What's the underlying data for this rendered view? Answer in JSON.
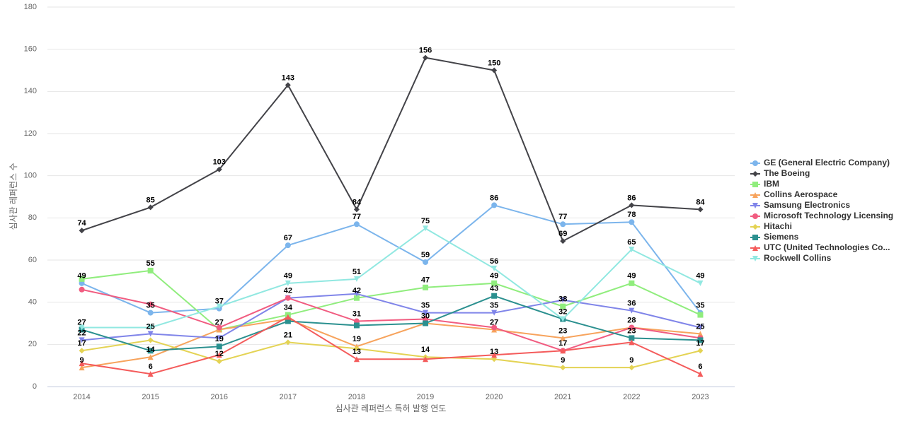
{
  "chart_data": {
    "type": "line",
    "x_label": "심사관 레퍼런스 특허 발행 연도",
    "y_label": "심사관 레퍼런스 수",
    "categories": [
      "2014",
      "2015",
      "2016",
      "2017",
      "2018",
      "2019",
      "2020",
      "2021",
      "2022",
      "2023"
    ],
    "ylim": [
      0,
      180
    ],
    "yticks": [
      0,
      20,
      40,
      60,
      80,
      100,
      120,
      140,
      160,
      180
    ],
    "grid": true,
    "legend": "right",
    "series": [
      {
        "name": "GE (General Electric Company)",
        "color": "#7cb5ec",
        "marker": "circle",
        "values": [
          49,
          35,
          37,
          67,
          77,
          59,
          86,
          77,
          78,
          35
        ]
      },
      {
        "name": "The Boeing",
        "color": "#434348",
        "marker": "diamond",
        "values": [
          74,
          85,
          103,
          143,
          84,
          156,
          150,
          69,
          86,
          84
        ]
      },
      {
        "name": "IBM",
        "color": "#90ed7d",
        "marker": "square",
        "values": [
          51,
          55,
          27,
          34,
          42,
          47,
          49,
          38,
          49,
          34
        ]
      },
      {
        "name": "Collins Aerospace",
        "color": "#f7a35c",
        "marker": "triangle",
        "values": [
          9,
          14,
          27,
          32,
          19,
          30,
          27,
          23,
          28,
          25
        ]
      },
      {
        "name": "Samsung Electronics",
        "color": "#8085e9",
        "marker": "triangle-down",
        "values": [
          22,
          25,
          23,
          42,
          44,
          35,
          35,
          41,
          36,
          28
        ]
      },
      {
        "name": "Microsoft Technology Licensing",
        "color": "#f15c80",
        "marker": "circle",
        "values": [
          46,
          39,
          28,
          42,
          31,
          32,
          28,
          17,
          28,
          23
        ]
      },
      {
        "name": "Hitachi",
        "color": "#e4d354",
        "marker": "diamond",
        "values": [
          17,
          22,
          12,
          21,
          18,
          14,
          13,
          9,
          9,
          17
        ]
      },
      {
        "name": "Siemens",
        "color": "#2b908f",
        "marker": "square",
        "values": [
          27,
          17,
          19,
          31,
          29,
          30,
          43,
          32,
          23,
          22
        ]
      },
      {
        "name": "UTC (United Technologies Co...",
        "color": "#f45b5b",
        "marker": "triangle",
        "values": [
          11,
          6,
          15,
          33,
          13,
          13,
          15,
          17,
          21,
          6
        ]
      },
      {
        "name": "Rockwell Collins",
        "color": "#91e8e1",
        "marker": "triangle-down",
        "values": [
          28,
          28,
          38,
          49,
          51,
          75,
          56,
          32,
          65,
          49
        ]
      }
    ]
  }
}
